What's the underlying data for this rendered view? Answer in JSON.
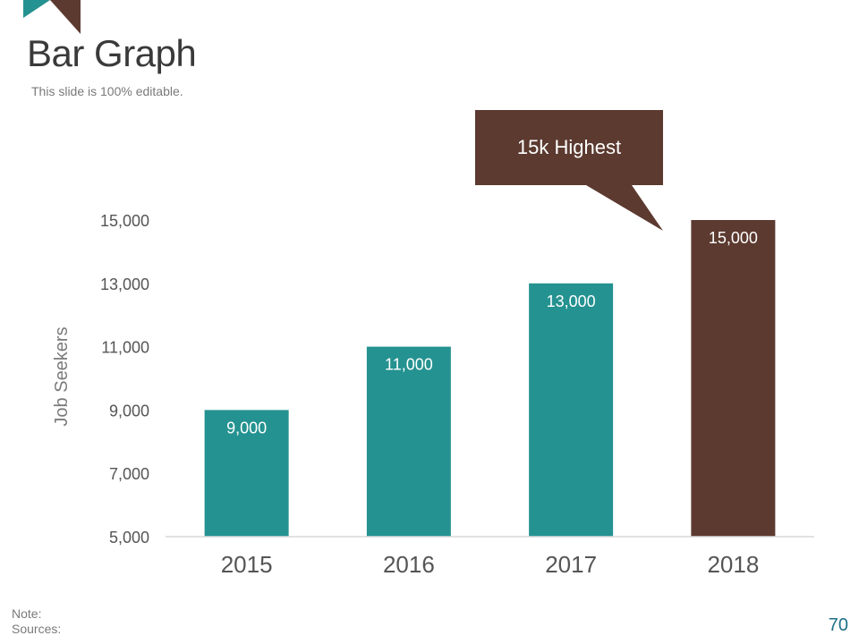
{
  "slide": {
    "title": "Bar Graph",
    "subtitle": "This slide is 100% editable.",
    "note_label": "Note:",
    "sources_label": "Sources:",
    "page_number": "70"
  },
  "colors": {
    "teal": "#249290",
    "brown": "#5c3a30",
    "axis": "#d9d9d9"
  },
  "callout": {
    "text": "15k Highest"
  },
  "chart_data": {
    "type": "bar",
    "title": "",
    "xlabel": "",
    "ylabel": "Job Seekers",
    "categories": [
      "2015",
      "2016",
      "2017",
      "2018"
    ],
    "values": [
      9000,
      11000,
      13000,
      15000
    ],
    "data_labels": [
      "9,000",
      "11,000",
      "13,000",
      "15,000"
    ],
    "highlight_index": 3,
    "ylim": [
      5000,
      15000
    ],
    "yticks": [
      5000,
      7000,
      9000,
      11000,
      13000,
      15000
    ],
    "ytick_labels": [
      "5,000",
      "7,000",
      "9,000",
      "11,000",
      "13,000",
      "15,000"
    ],
    "grid": false,
    "legend": "none"
  }
}
